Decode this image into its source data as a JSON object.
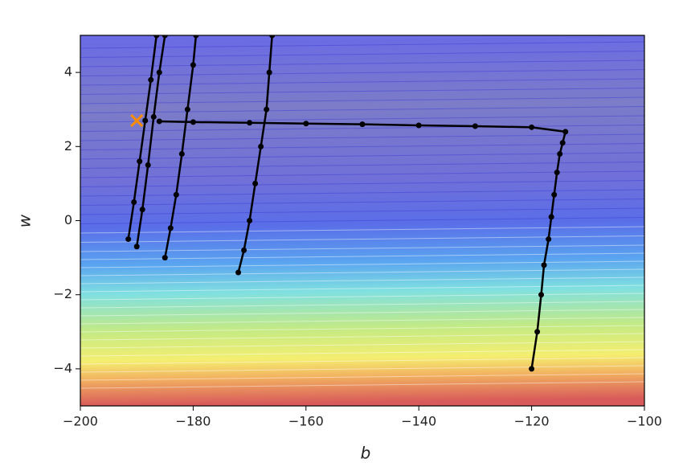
{
  "chart_data": {
    "type": "line",
    "xlabel": "b",
    "ylabel": "w",
    "xlim": [
      -200,
      -100
    ],
    "ylim": [
      -5,
      5
    ],
    "xticks": [
      {
        "value": -200,
        "label": "−200"
      },
      {
        "value": -180,
        "label": "−180"
      },
      {
        "value": -160,
        "label": "−160"
      },
      {
        "value": -140,
        "label": "−140"
      },
      {
        "value": -120,
        "label": "−120"
      },
      {
        "value": -100,
        "label": "−100"
      }
    ],
    "yticks": [
      {
        "value": -4,
        "label": "−4"
      },
      {
        "value": -2,
        "label": "−2"
      },
      0,
      2,
      4
    ],
    "series": [
      {
        "color": "#000000",
        "x": [
          -120,
          -119,
          -118.3,
          -117.8,
          -117,
          -116.5,
          -116,
          -115.5,
          -115,
          -114.5,
          -114,
          -120,
          -130,
          -140,
          -150,
          -160,
          -170,
          -180,
          -186
        ],
        "values": [
          -4,
          -3,
          -2,
          -1.2,
          -0.5,
          0.1,
          0.7,
          1.3,
          1.8,
          2.1,
          2.4,
          2.52,
          2.55,
          2.57,
          2.6,
          2.62,
          2.64,
          2.66,
          2.68
        ]
      },
      {
        "color": "#000000",
        "x": [
          -172,
          -171,
          -170,
          -169,
          -168,
          -167,
          -166.5,
          -166
        ],
        "values": [
          -1.4,
          -0.8,
          0,
          1,
          2,
          3,
          4,
          5
        ]
      },
      {
        "color": "#000000",
        "x": [
          -185,
          -184,
          -183,
          -182,
          -181,
          -180,
          -179.5
        ],
        "values": [
          -1,
          -0.2,
          0.7,
          1.8,
          3,
          4.2,
          5
        ]
      },
      {
        "color": "#000000",
        "x": [
          -190,
          -189,
          -188,
          -187,
          -186,
          -185
        ],
        "values": [
          -0.7,
          0.3,
          1.5,
          2.8,
          4,
          5
        ]
      },
      {
        "color": "#000000",
        "x": [
          -191.5,
          -190.5,
          -189.5,
          -188.5,
          -187.5,
          -186.5
        ],
        "values": [
          -0.5,
          0.5,
          1.6,
          2.7,
          3.8,
          5
        ]
      }
    ],
    "markers": [
      {
        "x": -190,
        "y": 2.7,
        "color": "#ff8c00"
      }
    ]
  }
}
